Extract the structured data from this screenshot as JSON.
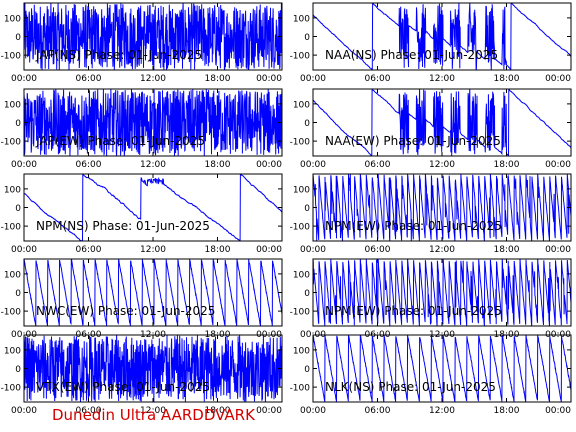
{
  "footer": {
    "text": "Dunedin Ultra AARDDVARK"
  },
  "colors": {
    "trace": "#0000ff",
    "axes": "#000000",
    "footer": "#d40000",
    "background": "#ffffff"
  },
  "chart_data": [
    {
      "type": "line",
      "title": "JAP(NS) Phase: 01-Jun-2025",
      "x_ticks": [
        "00:00",
        "06:00",
        "12:00",
        "18:00",
        "00:00"
      ],
      "y_ticks": [
        100,
        0,
        -100
      ],
      "ylim": [
        -180,
        180
      ],
      "xlim_hours": [
        0,
        24
      ],
      "pattern": "saturated",
      "series": [
        {
          "values": "phase noise filling full range"
        }
      ]
    },
    {
      "type": "line",
      "title": "NAA(NS) Phase: 01-Jun-2025",
      "x_ticks": [
        "00:00",
        "06:00",
        "12:00",
        "18:00",
        "00:00"
      ],
      "y_ticks": [
        100,
        0,
        -100
      ],
      "ylim": [
        -180,
        180
      ],
      "xlim_hours": [
        0,
        24
      ],
      "pattern": "mixed",
      "series": [
        {
          "values": "phase wrapping with dense noise bands 08:00-18:00"
        }
      ]
    },
    {
      "type": "line",
      "title": "JAP(EW) Phase: 01-Jun-2025",
      "x_ticks": [
        "00:00",
        "06:00",
        "12:00",
        "18:00",
        "00:00"
      ],
      "y_ticks": [
        100,
        0,
        -100
      ],
      "ylim": [
        -180,
        180
      ],
      "xlim_hours": [
        0,
        24
      ],
      "pattern": "saturated",
      "series": [
        {
          "values": "phase noise filling full range"
        }
      ]
    },
    {
      "type": "line",
      "title": "NAA(EW) Phase: 01-Jun-2025",
      "x_ticks": [
        "00:00",
        "06:00",
        "12:00",
        "18:00",
        "00:00"
      ],
      "y_ticks": [
        100,
        0,
        -100
      ],
      "ylim": [
        -180,
        180
      ],
      "xlim_hours": [
        0,
        24
      ],
      "pattern": "mixed",
      "series": [
        {
          "values": "phase wrapping with dense noise bands 08:00-20:00"
        }
      ]
    },
    {
      "type": "line",
      "title": "NPM(NS) Phase: 01-Jun-2025",
      "x_ticks": [
        "00:00",
        "06:00",
        "12:00",
        "18:00",
        "00:00"
      ],
      "y_ticks": [
        100,
        0,
        -100
      ],
      "ylim": [
        -180,
        180
      ],
      "xlim_hours": [
        0,
        24
      ],
      "pattern": "slow-drift",
      "series": [
        {
          "values": "slow downward phase drift with wraps"
        }
      ]
    },
    {
      "type": "line",
      "title": "NPM(EW) Phase: 01-Jun-2025",
      "x_ticks": [
        "00:00",
        "06:00",
        "12:00",
        "18:00",
        "00:00"
      ],
      "y_ticks": [
        100,
        0,
        -100
      ],
      "ylim": [
        -180,
        180
      ],
      "xlim_hours": [
        0,
        24
      ],
      "pattern": "fast-sawtooth",
      "series": [
        {
          "values": "rapid sawtooth phase wrapping"
        }
      ]
    },
    {
      "type": "line",
      "title": "NWC(EW) Phase: 01-Jun-2025",
      "x_ticks": [
        "00:00",
        "06:00",
        "12:00",
        "18:00",
        "00:00"
      ],
      "y_ticks": [
        100,
        0,
        -100
      ],
      "ylim": [
        -180,
        180
      ],
      "xlim_hours": [
        0,
        24
      ],
      "pattern": "sawtooth",
      "series": [
        {
          "values": "regular sawtooth, ~1.1 h period"
        }
      ]
    },
    {
      "type": "line",
      "title": "NPM(EW) Phase: 01-Jun-2025",
      "x_ticks": [
        "00:00",
        "06:00",
        "12:00",
        "18:00",
        "00:00"
      ],
      "y_ticks": [
        100,
        0,
        -100
      ],
      "ylim": [
        -180,
        180
      ],
      "xlim_hours": [
        0,
        24
      ],
      "pattern": "fast-sawtooth",
      "series": [
        {
          "values": "rapid sawtooth phase wrapping"
        }
      ]
    },
    {
      "type": "line",
      "title": "VTX(EW) Phase: 01-Jun-2025",
      "x_ticks": [
        "00:00",
        "06:00",
        "12:00",
        "18:00",
        "00:00"
      ],
      "y_ticks": [
        100,
        0,
        -100
      ],
      "ylim": [
        -180,
        180
      ],
      "xlim_hours": [
        0,
        24
      ],
      "pattern": "saturated",
      "series": [
        {
          "values": "phase noise filling full range"
        }
      ]
    },
    {
      "type": "line",
      "title": "NLK(NS) Phase: 01-Jun-2025",
      "x_ticks": [
        "00:00",
        "06:00",
        "12:00",
        "18:00",
        "00:00"
      ],
      "y_ticks": [
        100,
        0,
        -100
      ],
      "ylim": [
        -180,
        180
      ],
      "xlim_hours": [
        0,
        24
      ],
      "pattern": "sawtooth",
      "series": [
        {
          "values": "regular sawtooth, ~0.9 h period"
        }
      ]
    }
  ]
}
